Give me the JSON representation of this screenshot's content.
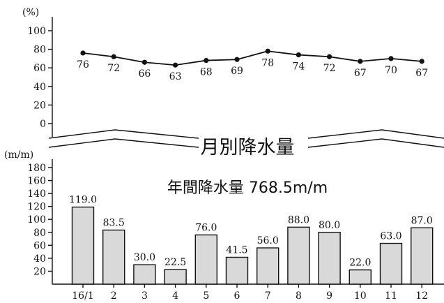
{
  "chart_data": [
    {
      "type": "line",
      "ylabel": "(%)",
      "ylim": [
        0,
        100
      ],
      "yticks": [
        0,
        20,
        40,
        60,
        80,
        100
      ],
      "categories": [
        "16/1",
        "2",
        "3",
        "4",
        "5",
        "6",
        "7",
        "8",
        "9",
        "10",
        "11",
        "12"
      ],
      "values": [
        76,
        72,
        66,
        63,
        68,
        69,
        78,
        74,
        72,
        67,
        70,
        67
      ],
      "data_labels": [
        "76",
        "72",
        "66",
        "63",
        "68",
        "69",
        "78",
        "74",
        "72",
        "67",
        "70",
        "67"
      ],
      "grid": false
    },
    {
      "type": "bar",
      "title": "月別降水量",
      "subtitle": "年間降水量 768.5m/m",
      "ylabel": "(m/m)",
      "ylim": [
        0,
        180
      ],
      "yticks": [
        20,
        40,
        60,
        80,
        100,
        120,
        140,
        160,
        180
      ],
      "categories": [
        "16/1",
        "2",
        "3",
        "4",
        "5",
        "6",
        "7",
        "8",
        "9",
        "10",
        "11",
        "12"
      ],
      "values": [
        119.0,
        83.5,
        30.0,
        22.5,
        76.0,
        41.5,
        56.0,
        88.0,
        80.0,
        22.0,
        63.0,
        87.0
      ],
      "data_labels": [
        "119.0",
        "83.5",
        "30.0",
        "22.5",
        "76.0",
        "41.5",
        "56.0",
        "88.0",
        "80.0",
        "22.0",
        "63.0",
        "87.0"
      ],
      "bar_color": "#d9d9d9",
      "grid": false
    }
  ]
}
